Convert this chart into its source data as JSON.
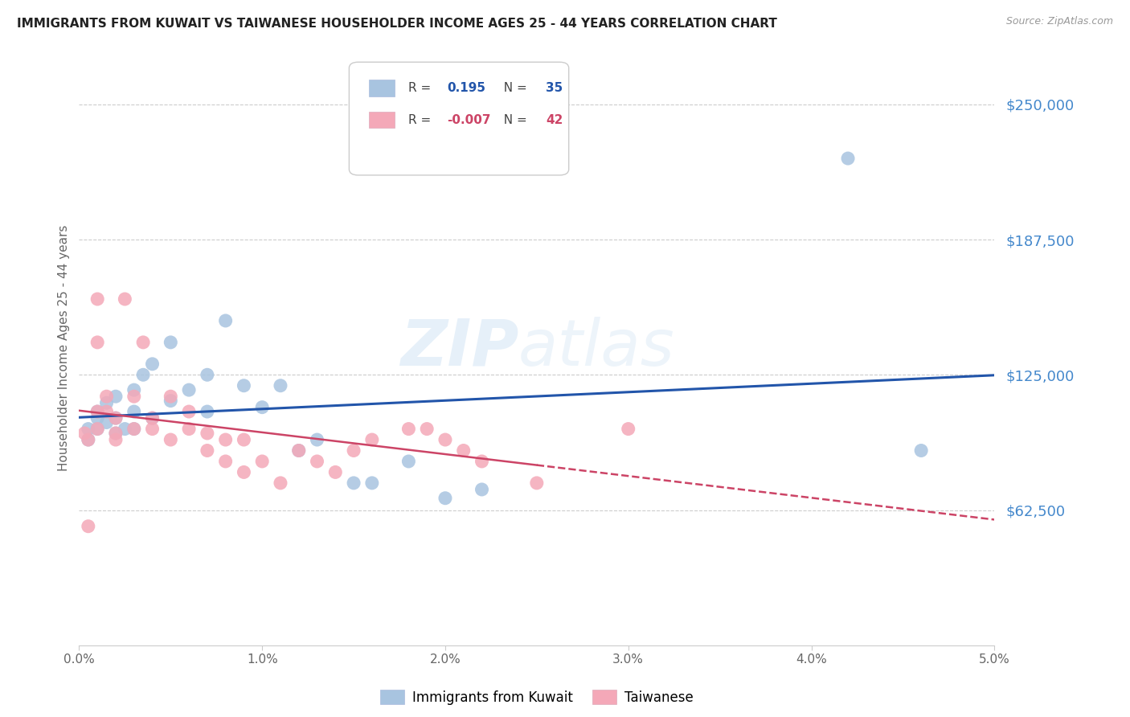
{
  "title": "IMMIGRANTS FROM KUWAIT VS TAIWANESE HOUSEHOLDER INCOME AGES 25 - 44 YEARS CORRELATION CHART",
  "source": "Source: ZipAtlas.com",
  "ylabel": "Householder Income Ages 25 - 44 years",
  "ytick_labels": [
    "$62,500",
    "$125,000",
    "$187,500",
    "$250,000"
  ],
  "ytick_values": [
    62500,
    125000,
    187500,
    250000
  ],
  "ymin": 0,
  "ymax": 275000,
  "xmin": 0.0,
  "xmax": 0.05,
  "r1": 0.195,
  "n1": 35,
  "r2": -0.007,
  "n2": 42,
  "blue_color": "#a8c4e0",
  "pink_color": "#f4a8b8",
  "line_blue": "#2255aa",
  "line_pink": "#cc4466",
  "watermark_zip": "ZIP",
  "watermark_atlas": "atlas",
  "legend_label1": "Immigrants from Kuwait",
  "legend_label2": "Taiwanese",
  "kuwait_x": [
    0.0005,
    0.0005,
    0.001,
    0.001,
    0.001,
    0.0015,
    0.0015,
    0.002,
    0.002,
    0.002,
    0.0025,
    0.003,
    0.003,
    0.003,
    0.0035,
    0.004,
    0.004,
    0.005,
    0.005,
    0.006,
    0.007,
    0.007,
    0.008,
    0.009,
    0.01,
    0.011,
    0.012,
    0.013,
    0.015,
    0.016,
    0.018,
    0.02,
    0.022,
    0.042,
    0.046
  ],
  "kuwait_y": [
    100000,
    95000,
    108000,
    105000,
    100000,
    112000,
    103000,
    98000,
    105000,
    115000,
    100000,
    100000,
    118000,
    108000,
    125000,
    130000,
    105000,
    140000,
    113000,
    118000,
    125000,
    108000,
    150000,
    120000,
    110000,
    120000,
    90000,
    95000,
    75000,
    75000,
    85000,
    68000,
    72000,
    225000,
    90000
  ],
  "taiwanese_x": [
    0.0003,
    0.0005,
    0.0005,
    0.001,
    0.001,
    0.001,
    0.001,
    0.0015,
    0.0015,
    0.002,
    0.002,
    0.002,
    0.0025,
    0.003,
    0.003,
    0.0035,
    0.004,
    0.004,
    0.005,
    0.005,
    0.006,
    0.006,
    0.007,
    0.007,
    0.008,
    0.008,
    0.009,
    0.009,
    0.01,
    0.011,
    0.012,
    0.013,
    0.014,
    0.015,
    0.016,
    0.018,
    0.019,
    0.02,
    0.021,
    0.022,
    0.025,
    0.03
  ],
  "taiwanese_y": [
    98000,
    95000,
    55000,
    140000,
    160000,
    100000,
    108000,
    115000,
    108000,
    98000,
    105000,
    95000,
    160000,
    100000,
    115000,
    140000,
    100000,
    105000,
    115000,
    95000,
    100000,
    108000,
    98000,
    90000,
    95000,
    85000,
    95000,
    80000,
    85000,
    75000,
    90000,
    85000,
    80000,
    90000,
    95000,
    100000,
    100000,
    95000,
    90000,
    85000,
    75000,
    100000
  ]
}
